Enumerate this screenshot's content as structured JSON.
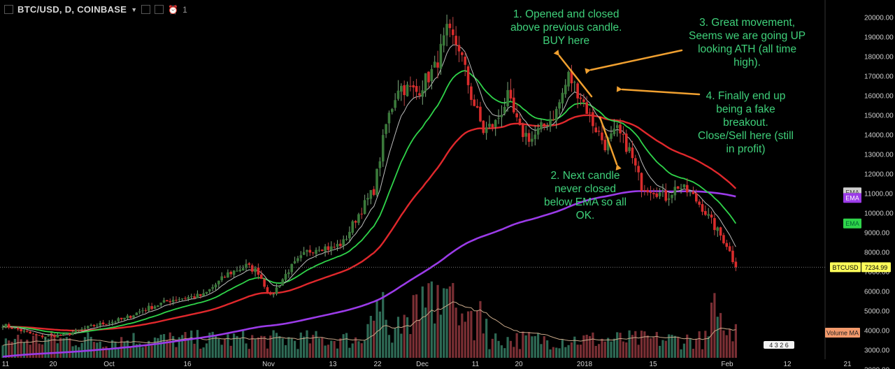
{
  "header": {
    "symbol": "BTC/USD, D, COINBASE",
    "alarm_count": "1"
  },
  "annotations": [
    {
      "id": "note1",
      "text": "1. Opened and closed\nabove previous candle.\nBUY here"
    },
    {
      "id": "note2",
      "text": "2. Next candle\nnever closed\nbelow EMA so all\nOK."
    },
    {
      "id": "note3",
      "text": "3. Great movement,\nSeems we are going UP\nlooking ATH (all time\nhigh)."
    },
    {
      "id": "note4",
      "text": "4. Finally end up\nbeing a fake\nbreakout.\nClose/Sell here (still\nin profit)"
    }
  ],
  "price_tags": {
    "ema_red": "EMA",
    "ema_green": "EMA",
    "ema_white": "EMA",
    "ema_purple": "EMA",
    "last_symbol": "BTCUSD",
    "last_price": "7234.99",
    "volume_ma": "Volume MA",
    "volume_counter": "4 3 2 6"
  },
  "colors": {
    "background": "#000000",
    "up_candle": "#3a7a3a",
    "down_candle": "#d92b2b",
    "ema_red": "#e0282c",
    "ema_green": "#2fd44a",
    "ema_white": "#bdbdbd",
    "ema_purple": "#9b3be8",
    "annotation_text": "#3fd07a",
    "arrow": "#f0a030",
    "volume_up": "#2e6a55",
    "volume_down": "#7a2f34"
  },
  "chart_data": {
    "type": "candlestick",
    "y_axis_ticks": [
      "2000.00",
      "3000.00",
      "4000.00",
      "5000.00",
      "6000.00",
      "7000.00",
      "8000.00",
      "9000.00",
      "10000.00",
      "11000.00",
      "12000.00",
      "13000.00",
      "14000.00",
      "15000.00",
      "16000.00",
      "17000.00",
      "18000.00",
      "19000.00",
      "20000.00"
    ],
    "ylim": [
      1500,
      20400
    ],
    "x_axis_labels": [
      "11",
      "20",
      "Oct",
      "16",
      "Nov",
      "13",
      "22",
      "Dec",
      "11",
      "20",
      "2018",
      "15",
      "Feb",
      "12",
      "21"
    ],
    "last_price": 7234.99,
    "close_key_points": [
      [
        0,
        4300
      ],
      [
        6,
        4000
      ],
      [
        12,
        3700
      ],
      [
        20,
        3750
      ],
      [
        30,
        4250
      ],
      [
        40,
        4600
      ],
      [
        46,
        5050
      ],
      [
        56,
        5600
      ],
      [
        66,
        5800
      ],
      [
        74,
        6900
      ],
      [
        80,
        7300
      ],
      [
        84,
        7000
      ],
      [
        88,
        5700
      ],
      [
        94,
        7100
      ],
      [
        100,
        8000
      ],
      [
        104,
        8300
      ],
      [
        108,
        8200
      ],
      [
        112,
        8500
      ],
      [
        116,
        9700
      ],
      [
        122,
        11200
      ],
      [
        126,
        14500
      ],
      [
        130,
        16500
      ],
      [
        136,
        16200
      ],
      [
        142,
        17400
      ],
      [
        146,
        19200
      ],
      [
        150,
        18500
      ],
      [
        154,
        16000
      ],
      [
        158,
        14200
      ],
      [
        162,
        14600
      ],
      [
        166,
        15900
      ],
      [
        170,
        14200
      ],
      [
        174,
        13800
      ],
      [
        178,
        14500
      ],
      [
        182,
        15200
      ],
      [
        186,
        17000
      ],
      [
        190,
        16000
      ],
      [
        194,
        14600
      ],
      [
        198,
        13500
      ],
      [
        202,
        14200
      ],
      [
        206,
        13200
      ],
      [
        210,
        11400
      ],
      [
        214,
        11200
      ],
      [
        218,
        10800
      ],
      [
        222,
        11400
      ],
      [
        226,
        11000
      ],
      [
        230,
        10300
      ],
      [
        234,
        9300
      ],
      [
        238,
        8400
      ],
      [
        241,
        7235
      ]
    ],
    "ema_lengths": {
      "white": 8,
      "green": 21,
      "red": 55,
      "purple": 200
    }
  }
}
